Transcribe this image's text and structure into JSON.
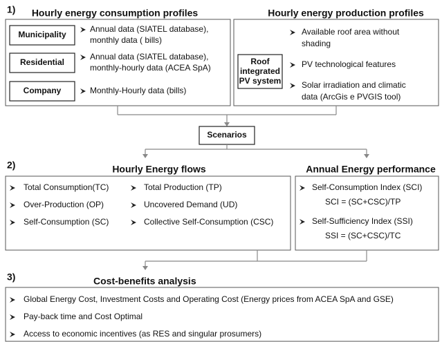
{
  "section1": {
    "number": "1)",
    "consumption": {
      "title": "Hourly energy consumption profiles",
      "items": [
        {
          "label": "Municipality",
          "lines": [
            "Annual data  (SIATEL database),",
            "monthly data ( bills)"
          ]
        },
        {
          "label": "Residential",
          "lines": [
            "Annual data  (SIATEL database),",
            "monthly-hourly data (ACEA SpA)"
          ]
        },
        {
          "label": "Company",
          "lines": [
            "Monthly-Hourly data (bills)"
          ]
        }
      ]
    },
    "production": {
      "title": "Hourly energy production profiles",
      "system": [
        "Roof",
        "integrated",
        "PV system"
      ],
      "items": [
        [
          "Available roof area without",
          "shading"
        ],
        [
          "PV technological features"
        ],
        [
          "Solar irradiation and climatic",
          "data (ArcGis e PVGIS tool)"
        ]
      ]
    }
  },
  "scenarios": "Scenarios",
  "section2": {
    "number": "2)",
    "flows": {
      "title": "Hourly Energy flows",
      "left": [
        "Total Consumption(TC)",
        "Over-Production (OP)",
        "Self-Consumption (SC)"
      ],
      "right": [
        "Total Production (TP)",
        "Uncovered Demand (UD)",
        "Collective Self-Consumption (CSC)"
      ]
    },
    "performance": {
      "title": "Annual Energy performance",
      "items": [
        {
          "name": "Self-Consumption Index (SCI)",
          "formula": "SCI = (SC+CSC)/TP"
        },
        {
          "name": "Self-Sufficiency Index (SSI)",
          "formula": "SSI  = (SC+CSC)/TC"
        }
      ]
    }
  },
  "section3": {
    "number": "3)",
    "title": "Cost-benefits analysis",
    "items": [
      "Global Energy Cost, Investment Costs and Operating Cost (Energy prices from ACEA SpA and GSE)",
      "Pay-back time and Cost Optimal",
      "Access to economic incentives (as RES and singular prosumers)"
    ]
  }
}
